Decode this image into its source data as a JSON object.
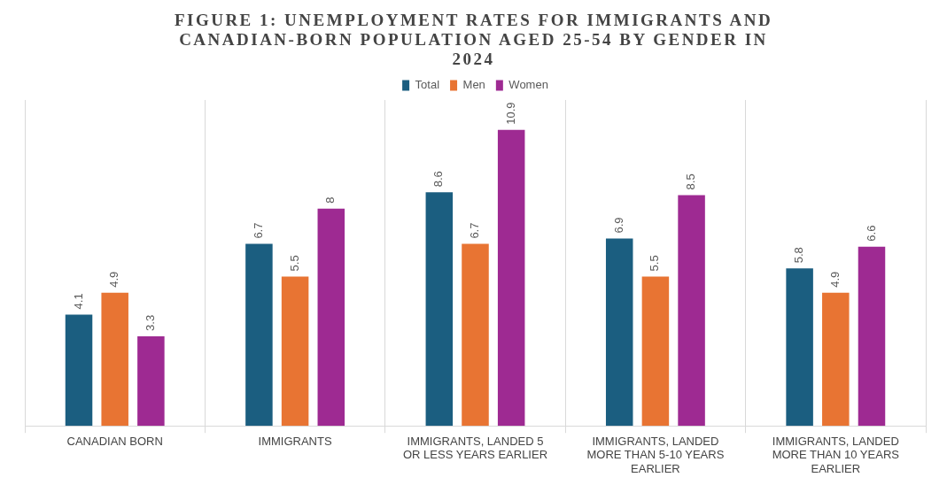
{
  "chart_data": {
    "type": "bar",
    "title": "FIGURE 1: UNEMPLOYMENT RATES FOR IMMIGRANTS AND CANADIAN-BORN POPULATION AGED 25-54 BY GENDER IN 2024",
    "categories": [
      "CANADIAN BORN",
      "IMMIGRANTS",
      "IMMIGRANTS, LANDED 5 OR LESS YEARS EARLIER",
      "IMMIGRANTS, LANDED MORE THAN 5-10 YEARS EARLIER",
      "IMMIGRANTS, LANDED MORE THAN 10 YEARS EARLIER"
    ],
    "series": [
      {
        "name": "Total",
        "color": "#1b5e80",
        "values": [
          4.1,
          6.7,
          8.6,
          6.9,
          5.8
        ]
      },
      {
        "name": "Men",
        "color": "#e87433",
        "values": [
          4.9,
          5.5,
          6.7,
          5.5,
          4.9
        ]
      },
      {
        "name": "Women",
        "color": "#9e2a92",
        "values": [
          3.3,
          8,
          10.9,
          8.5,
          6.6
        ]
      }
    ],
    "data_labels": true,
    "grid": "x",
    "legend": "top"
  }
}
